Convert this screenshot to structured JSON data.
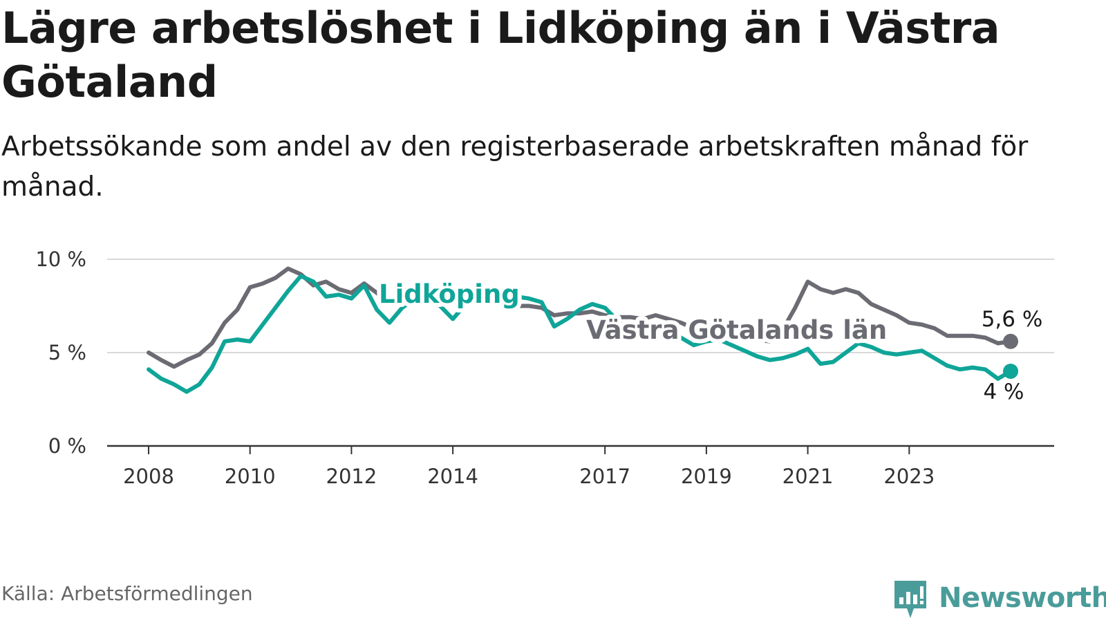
{
  "title": "Lägre arbetslöshet i Lidköping än i Västra Götaland",
  "subtitle": "Arbetssökande som andel av den registerbaserade arbetskraften månad för månad.",
  "source": "Källa: Arbetsförmedlingen",
  "brand": "Newsworthy",
  "colors": {
    "lidkoping": "#0fa598",
    "vastra": "#6b6b73",
    "grid": "#d9d9d9",
    "axis": "#333333",
    "brand": "#4a9c9a"
  },
  "chart_data": {
    "type": "line",
    "title": "Lägre arbetslöshet i Lidköping än i Västra Götaland",
    "xlabel": "",
    "ylabel": "",
    "ylim": [
      0,
      10
    ],
    "xlim": [
      2008.0,
      2025.0
    ],
    "yticks": [
      0,
      5,
      10
    ],
    "ytick_labels": [
      "0 %",
      "5 %",
      "10 %"
    ],
    "xticks": [
      2008,
      2010,
      2012,
      2014,
      2017,
      2019,
      2021,
      2023
    ],
    "xtick_labels": [
      "2008",
      "2010",
      "2012",
      "2014",
      "2017",
      "2019",
      "2021",
      "2023"
    ],
    "grid": true,
    "series": [
      {
        "name": "Västra Götalands län",
        "key": "vastra",
        "end_label": "5,6 %",
        "points": [
          [
            2008.0,
            5.0
          ],
          [
            2008.25,
            4.6
          ],
          [
            2008.5,
            4.25
          ],
          [
            2008.75,
            4.6
          ],
          [
            2009.0,
            4.9
          ],
          [
            2009.25,
            5.5
          ],
          [
            2009.5,
            6.6
          ],
          [
            2009.75,
            7.3
          ],
          [
            2010.0,
            8.5
          ],
          [
            2010.25,
            8.7
          ],
          [
            2010.5,
            9.0
          ],
          [
            2010.75,
            9.5
          ],
          [
            2011.0,
            9.2
          ],
          [
            2011.25,
            8.6
          ],
          [
            2011.5,
            8.8
          ],
          [
            2011.75,
            8.4
          ],
          [
            2012.0,
            8.2
          ],
          [
            2012.25,
            8.7
          ],
          [
            2012.5,
            8.2
          ],
          [
            2012.75,
            7.6
          ],
          [
            2013.0,
            7.9
          ],
          [
            2013.25,
            7.8
          ],
          [
            2013.5,
            8.1
          ],
          [
            2013.75,
            8.2
          ],
          [
            2014.0,
            8.0
          ],
          [
            2014.25,
            7.9
          ],
          [
            2014.5,
            7.9
          ],
          [
            2014.75,
            7.8
          ],
          [
            2015.0,
            7.6
          ],
          [
            2015.25,
            7.5
          ],
          [
            2015.5,
            7.5
          ],
          [
            2015.75,
            7.4
          ],
          [
            2016.0,
            7.0
          ],
          [
            2016.25,
            7.1
          ],
          [
            2016.5,
            7.1
          ],
          [
            2016.75,
            7.2
          ],
          [
            2017.0,
            7.0
          ],
          [
            2017.25,
            6.9
          ],
          [
            2017.5,
            6.9
          ],
          [
            2017.75,
            6.8
          ],
          [
            2018.0,
            7.0
          ],
          [
            2018.25,
            6.8
          ],
          [
            2018.5,
            6.6
          ],
          [
            2018.75,
            6.3
          ],
          [
            2019.0,
            6.2
          ],
          [
            2019.25,
            6.1
          ],
          [
            2019.5,
            5.9
          ],
          [
            2019.75,
            5.8
          ],
          [
            2020.0,
            5.7
          ],
          [
            2020.25,
            5.6
          ],
          [
            2020.5,
            6.2
          ],
          [
            2020.75,
            7.4
          ],
          [
            2021.0,
            8.8
          ],
          [
            2021.25,
            8.4
          ],
          [
            2021.5,
            8.2
          ],
          [
            2021.75,
            8.4
          ],
          [
            2022.0,
            8.2
          ],
          [
            2022.25,
            7.6
          ],
          [
            2022.5,
            7.3
          ],
          [
            2022.75,
            7.0
          ],
          [
            2023.0,
            6.6
          ],
          [
            2023.25,
            6.5
          ],
          [
            2023.5,
            6.3
          ],
          [
            2023.75,
            5.9
          ],
          [
            2024.0,
            5.9
          ],
          [
            2024.25,
            5.9
          ],
          [
            2024.5,
            5.8
          ],
          [
            2024.75,
            5.5
          ],
          [
            2025.0,
            5.6
          ]
        ]
      },
      {
        "name": "Lidköping",
        "key": "lidkoping",
        "end_label": "4 %",
        "points": [
          [
            2008.0,
            4.1
          ],
          [
            2008.25,
            3.6
          ],
          [
            2008.5,
            3.3
          ],
          [
            2008.75,
            2.9
          ],
          [
            2009.0,
            3.3
          ],
          [
            2009.25,
            4.2
          ],
          [
            2009.5,
            5.6
          ],
          [
            2009.75,
            5.7
          ],
          [
            2010.0,
            5.6
          ],
          [
            2010.25,
            6.5
          ],
          [
            2010.5,
            7.4
          ],
          [
            2010.75,
            8.3
          ],
          [
            2011.0,
            9.1
          ],
          [
            2011.25,
            8.8
          ],
          [
            2011.5,
            8.0
          ],
          [
            2011.75,
            8.1
          ],
          [
            2012.0,
            7.9
          ],
          [
            2012.25,
            8.6
          ],
          [
            2012.5,
            7.3
          ],
          [
            2012.75,
            6.6
          ],
          [
            2013.0,
            7.4
          ],
          [
            2013.25,
            7.9
          ],
          [
            2013.5,
            8.3
          ],
          [
            2013.75,
            7.5
          ],
          [
            2014.0,
            6.8
          ],
          [
            2014.25,
            7.6
          ],
          [
            2014.5,
            8.1
          ],
          [
            2014.75,
            7.9
          ],
          [
            2015.0,
            7.6
          ],
          [
            2015.25,
            8.0
          ],
          [
            2015.5,
            7.9
          ],
          [
            2015.75,
            7.7
          ],
          [
            2016.0,
            6.4
          ],
          [
            2016.25,
            6.8
          ],
          [
            2016.5,
            7.3
          ],
          [
            2016.75,
            7.6
          ],
          [
            2017.0,
            7.4
          ],
          [
            2017.25,
            6.7
          ],
          [
            2017.5,
            6.0
          ],
          [
            2017.75,
            6.5
          ],
          [
            2018.0,
            6.6
          ],
          [
            2018.25,
            6.1
          ],
          [
            2018.5,
            5.8
          ],
          [
            2018.75,
            5.4
          ],
          [
            2019.0,
            5.6
          ],
          [
            2019.25,
            5.7
          ],
          [
            2019.5,
            5.4
          ],
          [
            2019.75,
            5.1
          ],
          [
            2020.0,
            4.8
          ],
          [
            2020.25,
            4.6
          ],
          [
            2020.5,
            4.7
          ],
          [
            2020.75,
            4.9
          ],
          [
            2021.0,
            5.2
          ],
          [
            2021.25,
            4.4
          ],
          [
            2021.5,
            4.5
          ],
          [
            2021.75,
            5.0
          ],
          [
            2022.0,
            5.5
          ],
          [
            2022.25,
            5.3
          ],
          [
            2022.5,
            5.0
          ],
          [
            2022.75,
            4.9
          ],
          [
            2023.0,
            5.0
          ],
          [
            2023.25,
            5.1
          ],
          [
            2023.5,
            4.7
          ],
          [
            2023.75,
            4.3
          ],
          [
            2024.0,
            4.1
          ],
          [
            2024.25,
            4.2
          ],
          [
            2024.5,
            4.1
          ],
          [
            2024.75,
            3.6
          ],
          [
            2025.0,
            4.0
          ]
        ]
      }
    ],
    "series_labels": [
      {
        "series": "lidkoping",
        "text": "Lidköping"
      },
      {
        "series": "vastra",
        "text": "Västra Götalands län"
      }
    ]
  }
}
